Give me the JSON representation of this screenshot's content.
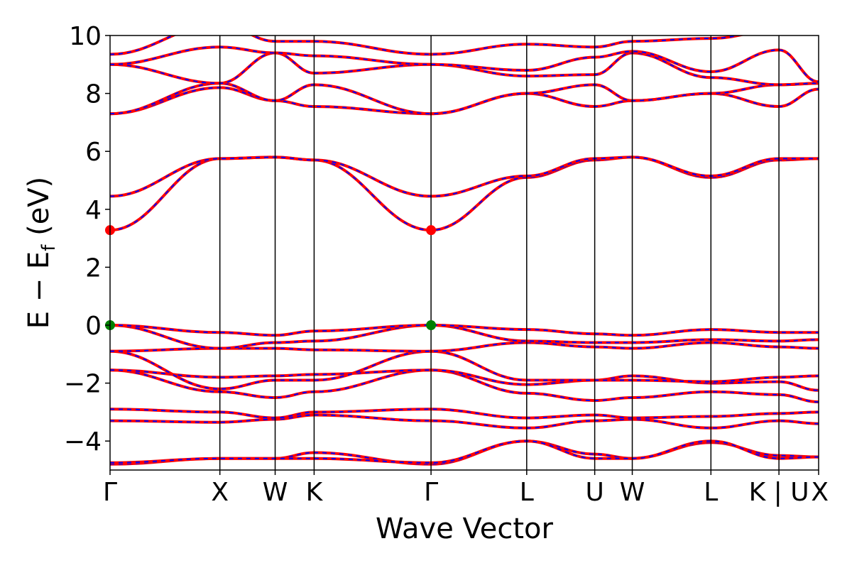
{
  "chart_data": {
    "type": "line",
    "xlabel": "Wave Vector",
    "ylabel": "E − E",
    "ylabel_sub": "f",
    "ylabel_unit": " (eV)",
    "ylim": [
      -5,
      10
    ],
    "yticks": [
      10,
      8,
      6,
      4,
      2,
      0,
      -2,
      -4
    ],
    "ytick_labels": [
      "10",
      "8",
      "6",
      "4",
      "2",
      "0",
      "−2",
      "−4"
    ],
    "xlim": [
      0,
      1
    ],
    "kpoints": [
      {
        "label": "Γ",
        "x": 0.0
      },
      {
        "label": "X",
        "x": 0.155
      },
      {
        "label": "W",
        "x": 0.233
      },
      {
        "label": "K",
        "x": 0.288
      },
      {
        "label": "Γ",
        "x": 0.453
      },
      {
        "label": "L",
        "x": 0.588
      },
      {
        "label": "U",
        "x": 0.684
      },
      {
        "label": "W",
        "x": 0.737
      },
      {
        "label": "L",
        "x": 0.848
      },
      {
        "label": "K | U",
        "x": 0.944
      },
      {
        "label": "X",
        "x": 1.0
      }
    ],
    "grid": false,
    "legend": "none",
    "line_colors": {
      "primary": "#ff0000",
      "overlay": "#0000ff"
    },
    "extrema": {
      "cbm": {
        "color": "#ff0000",
        "points": [
          {
            "x": 0.0,
            "y": 3.28
          },
          {
            "x": 0.453,
            "y": 3.28
          }
        ]
      },
      "vbm": {
        "color": "#008000",
        "points": [
          {
            "x": 0.0,
            "y": 0.0
          },
          {
            "x": 0.453,
            "y": 0.0
          }
        ]
      }
    },
    "series": [
      {
        "x": [
          0,
          0.155,
          0.233,
          0.288,
          0.453,
          0.588,
          0.684,
          0.737,
          0.848,
          0.944,
          1.0
        ],
        "y": [
          -4.8,
          -4.6,
          -4.6,
          -4.4,
          -4.8,
          -4.0,
          -4.45,
          -4.6,
          -4.05,
          -4.5,
          -4.55
        ]
      },
      {
        "x": [
          0,
          0.155,
          0.233,
          0.288,
          0.453,
          0.588,
          0.684,
          0.737,
          0.848,
          0.944,
          1.0
        ],
        "y": [
          -4.75,
          -4.6,
          -4.6,
          -4.6,
          -4.75,
          -4.0,
          -4.6,
          -4.6,
          -4.0,
          -4.6,
          -4.55
        ]
      },
      {
        "x": [
          0,
          0.155,
          0.233,
          0.288,
          0.453,
          0.588,
          0.684,
          0.737,
          0.848,
          0.944,
          1.0
        ],
        "y": [
          -3.3,
          -3.35,
          -3.25,
          -3.1,
          -3.3,
          -3.55,
          -3.3,
          -3.25,
          -3.55,
          -3.3,
          -3.4
        ]
      },
      {
        "x": [
          0,
          0.155,
          0.233,
          0.288,
          0.453,
          0.588,
          0.684,
          0.737,
          0.848,
          0.944,
          1.0
        ],
        "y": [
          -2.9,
          -3.0,
          -3.2,
          -3.0,
          -2.9,
          -3.2,
          -3.1,
          -3.2,
          -3.15,
          -3.05,
          -3.0
        ]
      },
      {
        "x": [
          0,
          0.155,
          0.233,
          0.288,
          0.453,
          0.588,
          0.684,
          0.737,
          0.848,
          0.944,
          1.0
        ],
        "y": [
          -1.55,
          -2.3,
          -2.5,
          -2.3,
          -1.55,
          -2.35,
          -2.6,
          -2.5,
          -2.3,
          -2.4,
          -2.65
        ]
      },
      {
        "x": [
          0,
          0.155,
          0.233,
          0.288,
          0.453,
          0.588,
          0.684,
          0.737,
          0.848,
          0.944,
          1.0
        ],
        "y": [
          -1.55,
          -1.8,
          -1.75,
          -1.7,
          -1.55,
          -2.05,
          -1.9,
          -1.75,
          -2.0,
          -1.95,
          -2.25
        ]
      },
      {
        "x": [
          0,
          0.155,
          0.233,
          0.288,
          0.453,
          0.588,
          0.684,
          0.737,
          0.848,
          0.944,
          1.0
        ],
        "y": [
          -0.9,
          -2.2,
          -1.9,
          -1.9,
          -0.9,
          -1.9,
          -1.9,
          -1.9,
          -1.95,
          -1.8,
          -1.75
        ]
      },
      {
        "x": [
          0,
          0.155,
          0.233,
          0.288,
          0.453,
          0.588,
          0.684,
          0.737,
          0.848,
          0.944,
          1.0
        ],
        "y": [
          -0.9,
          -0.8,
          -0.8,
          -0.85,
          -0.9,
          -0.6,
          -0.75,
          -0.8,
          -0.6,
          -0.75,
          -0.8
        ]
      },
      {
        "x": [
          0,
          0.155,
          0.233,
          0.288,
          0.453,
          0.588,
          0.684,
          0.737,
          0.848,
          0.944,
          1.0
        ],
        "y": [
          0.0,
          -0.8,
          -0.6,
          -0.55,
          0.0,
          -0.55,
          -0.6,
          -0.6,
          -0.5,
          -0.55,
          -0.5
        ]
      },
      {
        "x": [
          0,
          0.155,
          0.233,
          0.288,
          0.453,
          0.588,
          0.684,
          0.737,
          0.848,
          0.944,
          1.0
        ],
        "y": [
          0.0,
          -0.25,
          -0.35,
          -0.2,
          0.0,
          -0.15,
          -0.3,
          -0.35,
          -0.15,
          -0.25,
          -0.25
        ]
      },
      {
        "x": [
          0,
          0.155,
          0.233,
          0.288,
          0.453,
          0.588,
          0.684,
          0.737,
          0.848,
          0.944,
          1.0
        ],
        "y": [
          3.28,
          5.75,
          5.8,
          5.7,
          3.28,
          5.1,
          5.7,
          5.8,
          5.1,
          5.7,
          5.75
        ]
      },
      {
        "x": [
          0,
          0.155,
          0.233,
          0.288,
          0.453,
          0.588,
          0.684,
          0.737,
          0.848,
          0.944,
          1.0
        ],
        "y": [
          4.45,
          5.75,
          5.8,
          5.7,
          4.45,
          5.15,
          5.75,
          5.8,
          5.15,
          5.75,
          5.75
        ]
      },
      {
        "x": [
          0,
          0.155,
          0.233,
          0.288,
          0.453,
          0.588,
          0.684,
          0.737,
          0.848,
          0.944,
          1.0
        ],
        "y": [
          7.3,
          8.2,
          7.75,
          7.55,
          7.3,
          8.0,
          7.55,
          7.75,
          8.0,
          7.55,
          8.15
        ]
      },
      {
        "x": [
          0,
          0.155,
          0.233,
          0.288,
          0.453,
          0.588,
          0.684,
          0.737,
          0.848,
          0.944,
          1.0
        ],
        "y": [
          7.3,
          8.35,
          7.75,
          8.3,
          7.3,
          8.0,
          8.3,
          7.75,
          8.0,
          8.3,
          8.35
        ]
      },
      {
        "x": [
          0,
          0.155,
          0.233,
          0.288,
          0.453,
          0.588,
          0.684,
          0.737,
          0.848,
          0.944,
          1.0
        ],
        "y": [
          9.0,
          8.35,
          9.4,
          8.7,
          9.0,
          8.6,
          8.65,
          9.4,
          8.55,
          8.3,
          8.35
        ]
      },
      {
        "x": [
          0,
          0.155,
          0.233,
          0.288,
          0.453,
          0.588,
          0.684,
          0.737,
          0.848,
          0.944,
          1.0
        ],
        "y": [
          9.0,
          9.6,
          9.4,
          9.3,
          9.0,
          8.8,
          9.25,
          9.45,
          8.75,
          9.5,
          8.4
        ]
      },
      {
        "x": [
          0,
          0.155,
          0.233,
          0.288,
          0.453,
          0.588,
          0.684,
          0.737,
          0.848,
          0.944,
          1.0
        ],
        "y": [
          9.35,
          10.4,
          9.8,
          9.8,
          9.35,
          9.7,
          9.6,
          9.8,
          9.9,
          10.2,
          10.4
        ]
      }
    ]
  }
}
